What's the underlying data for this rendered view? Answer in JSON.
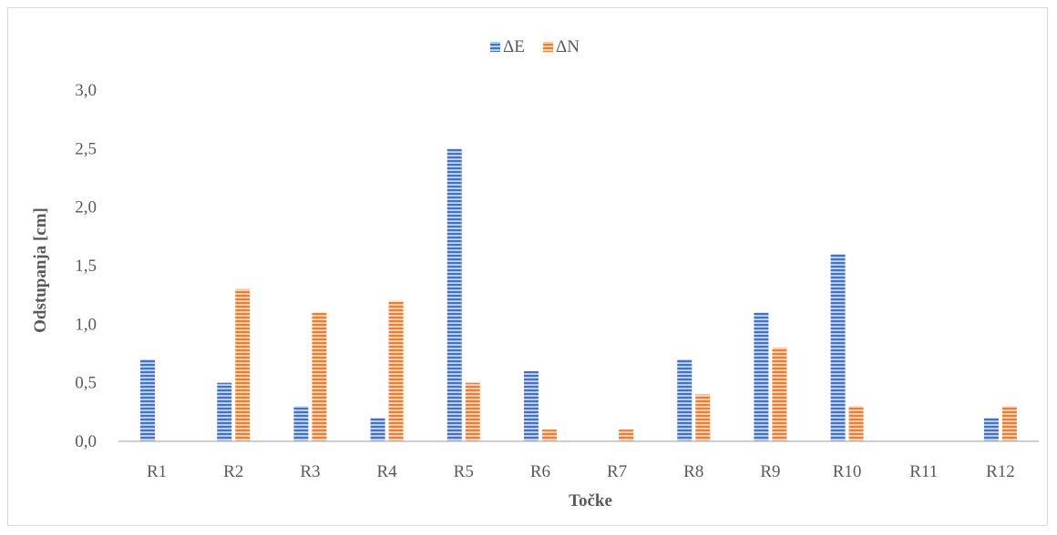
{
  "chart_data": {
    "type": "bar",
    "title": "",
    "xlabel": "Točke",
    "ylabel": "Odstupanja [cm]",
    "categories": [
      "R1",
      "R2",
      "R3",
      "R4",
      "R5",
      "R6",
      "R7",
      "R8",
      "R9",
      "R10",
      "R11",
      "R12"
    ],
    "series": [
      {
        "name": "ΔE",
        "color": "#4472c4",
        "values": [
          0.7,
          0.5,
          0.3,
          0.2,
          2.5,
          0.6,
          0.0,
          0.7,
          1.1,
          1.6,
          0.0,
          0.2
        ]
      },
      {
        "name": "ΔN",
        "color": "#ed7d31",
        "values": [
          0.0,
          1.3,
          1.1,
          1.2,
          0.5,
          0.1,
          0.1,
          0.4,
          0.8,
          0.3,
          0.0,
          0.3
        ]
      }
    ],
    "ylim": [
      0,
      3.0
    ],
    "yticks": [
      "0,0",
      "0,5",
      "1,0",
      "1,5",
      "2,0",
      "2,5",
      "3,0"
    ],
    "ytick_values": [
      0,
      0.5,
      1.0,
      1.5,
      2.0,
      2.5,
      3.0
    ],
    "grid": false,
    "legend_position": "top-center",
    "bar_pattern": "horizontal-stripes"
  }
}
